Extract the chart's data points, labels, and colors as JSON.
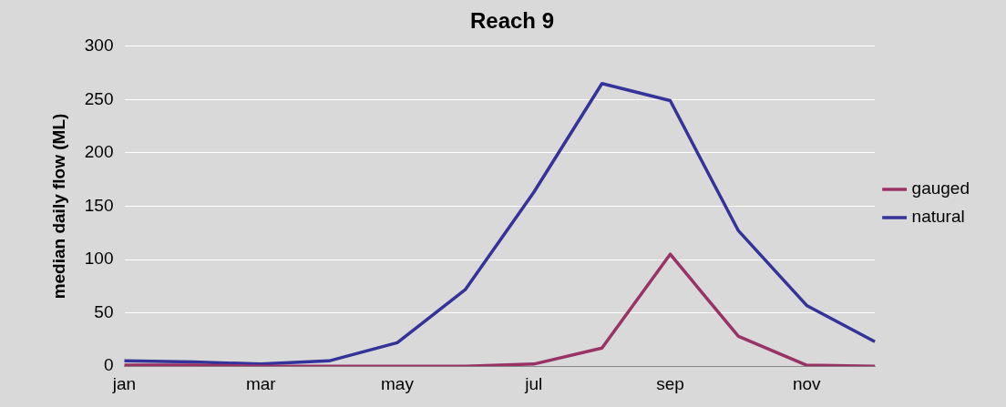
{
  "chart_data": {
    "type": "line",
    "title": "Reach 9",
    "ylabel": "median daily flow (ML)",
    "categories": [
      "jan",
      null,
      "mar",
      null,
      "may",
      null,
      "jul",
      null,
      "sep",
      null,
      "nov",
      null
    ],
    "series": [
      {
        "name": "gauged",
        "color": "#993366",
        "values": [
          1,
          1,
          0,
          0,
          0,
          0,
          2,
          17,
          105,
          28,
          1,
          0
        ]
      },
      {
        "name": "natural",
        "color": "#333399",
        "values": [
          5,
          4,
          2,
          5,
          22,
          72,
          163,
          265,
          249,
          127,
          57,
          23
        ]
      }
    ],
    "ylim": [
      0,
      300
    ],
    "yticks": [
      0,
      50,
      100,
      150,
      200,
      250,
      300
    ],
    "grid": "y",
    "legend": "right",
    "marker": "none",
    "line_style": "solid"
  }
}
